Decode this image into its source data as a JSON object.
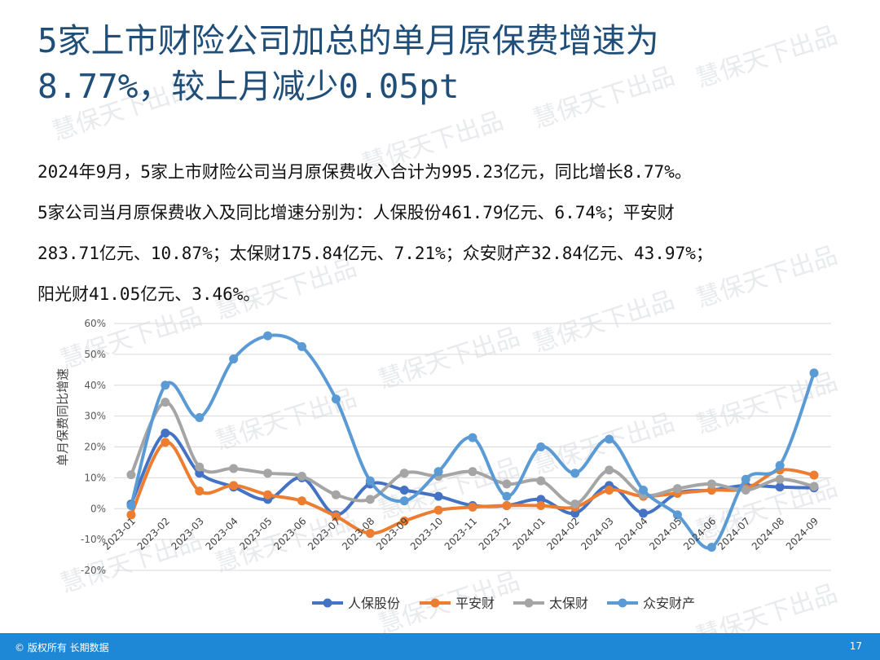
{
  "title": {
    "line1": "5家上市财险公司加总的单月原保费增速为",
    "line2": "8.77%，较上月减少0.05pt"
  },
  "summary": {
    "line1": "2024年9月，5家上市财险公司当月原保费收入合计为995.23亿元，同比增长8.77%。",
    "line2": "5家公司当月原保费收入及同比增速分别为：人保股份461.79亿元、6.74%；平安财",
    "line3": "283.71亿元、10.87%；太保财175.84亿元、7.21%；众安财产32.84亿元、43.97%；",
    "line4": "阳光财41.05亿元、3.46%。"
  },
  "watermark": "慧保天下出品",
  "footer": {
    "copyright": "© 版权所有 长期数据",
    "page_number": "17"
  },
  "chart_data": {
    "type": "line",
    "ylabel": "单月保费同比增速",
    "ylim": [
      -20,
      60
    ],
    "yticks": [
      -20,
      -10,
      0,
      10,
      20,
      30,
      40,
      50,
      60
    ],
    "ytick_labels": [
      "-20%",
      "-10%",
      "0%",
      "10%",
      "20%",
      "30%",
      "40%",
      "50%",
      "60%"
    ],
    "grid": true,
    "smooth": true,
    "legend_position": "bottom",
    "categories": [
      "2023-01",
      "2023-02",
      "2023-03",
      "2023-04",
      "2023-05",
      "2023-06",
      "2023-07",
      "2023-08",
      "2023-09",
      "2023-10",
      "2023-11",
      "2023-12",
      "2024-01",
      "2024-02",
      "2024-03",
      "2024-04",
      "2024-05",
      "2024-06",
      "2024-07",
      "2024-08",
      "2024-09"
    ],
    "series": [
      {
        "name": "人保股份",
        "color": "#4472c4",
        "values": [
          1.5,
          24.5,
          11.5,
          7.0,
          3.0,
          10.0,
          -2.0,
          8.0,
          6.0,
          4.0,
          1.0,
          1.0,
          3.0,
          -1.5,
          7.5,
          -1.5,
          5.0,
          6.0,
          7.5,
          7.0,
          6.74
        ]
      },
      {
        "name": "平安财",
        "color": "#ed7d31",
        "values": [
          -2.0,
          21.5,
          5.7,
          7.5,
          4.5,
          2.5,
          -2.5,
          -8.0,
          -4.0,
          -0.5,
          0.5,
          1.0,
          1.0,
          0.5,
          6.0,
          4.0,
          5.0,
          6.0,
          6.5,
          12.5,
          10.87
        ]
      },
      {
        "name": "太保财",
        "color": "#a5a5a5",
        "values": [
          11.0,
          34.5,
          13.5,
          13.0,
          11.5,
          10.5,
          4.5,
          3.0,
          11.5,
          10.5,
          12.0,
          8.0,
          9.0,
          1.5,
          12.5,
          4.5,
          6.5,
          8.0,
          6.0,
          9.5,
          7.21
        ]
      },
      {
        "name": "众安财产",
        "color": "#5b9bd5",
        "values": [
          1.0,
          40.0,
          29.5,
          48.5,
          56.0,
          52.5,
          35.5,
          9.0,
          2.5,
          12.0,
          23.0,
          4.0,
          20.0,
          11.5,
          22.5,
          6.0,
          -2.0,
          -12.5,
          9.5,
          14.0,
          43.97
        ]
      }
    ]
  }
}
